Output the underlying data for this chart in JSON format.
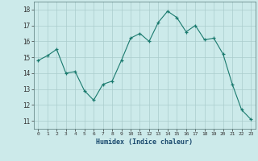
{
  "x": [
    0,
    1,
    2,
    3,
    4,
    5,
    6,
    7,
    8,
    9,
    10,
    11,
    12,
    13,
    14,
    15,
    16,
    17,
    18,
    19,
    20,
    21,
    22,
    23
  ],
  "y": [
    14.8,
    15.1,
    15.5,
    14.0,
    14.1,
    12.9,
    12.3,
    13.3,
    13.5,
    14.8,
    16.2,
    16.5,
    16.0,
    17.2,
    17.9,
    17.5,
    16.6,
    17.0,
    16.1,
    16.2,
    15.2,
    13.3,
    11.7,
    11.1
  ],
  "line_color": "#1a7a6e",
  "marker_color": "#1a7a6e",
  "bg_color": "#cceaea",
  "grid_color": "#aacccc",
  "xlabel": "Humidex (Indice chaleur)",
  "ylim": [
    10.5,
    18.5
  ],
  "xlim": [
    -0.5,
    23.5
  ],
  "yticks": [
    11,
    12,
    13,
    14,
    15,
    16,
    17,
    18
  ],
  "xticks": [
    0,
    1,
    2,
    3,
    4,
    5,
    6,
    7,
    8,
    9,
    10,
    11,
    12,
    13,
    14,
    15,
    16,
    17,
    18,
    19,
    20,
    21,
    22,
    23
  ]
}
